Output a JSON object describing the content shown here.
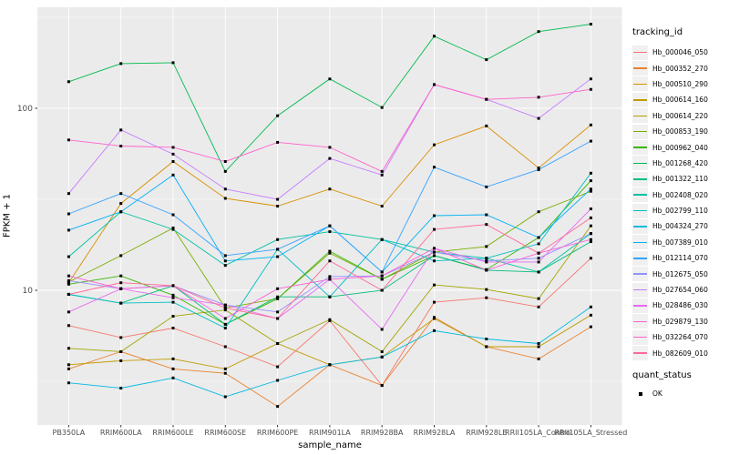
{
  "chart_data": {
    "type": "line",
    "title": "",
    "xlabel": "sample_name",
    "ylabel": "FPKM + 1",
    "y_scale": "log10",
    "ylim": [
      1.8,
      360
    ],
    "grid": true,
    "legend_position": "right",
    "point_marker": "black-square",
    "y_ticks": [
      {
        "label": "100",
        "value": 100
      },
      {
        "label": "10",
        "value": 10
      }
    ],
    "y_major_gridlines": [
      10,
      100
    ],
    "y_minor_gridlines": [
      3.162,
      31.62,
      316.2
    ],
    "categories": [
      "PB350LA",
      "RRIM600LA",
      "RRIM600LE",
      "RRIM600SE",
      "RRIM600PE",
      "RRIM901LA",
      "RRIM928BA",
      "RRIM928LA",
      "RRIM928LE",
      "RRII105LA_Control",
      "RRII105LA_Stressed"
    ],
    "series": [
      {
        "name": "Hb_000046_050",
        "color": "#F8766D",
        "values": [
          6.4,
          5.5,
          6.2,
          4.9,
          3.8,
          6.8,
          3.0,
          8.6,
          9.1,
          8.1,
          15
        ]
      },
      {
        "name": "Hb_000352_270",
        "color": "#EA8331",
        "values": [
          3.7,
          4.6,
          3.7,
          3.5,
          2.3,
          3.9,
          3.0,
          7.1,
          4.9,
          4.2,
          6.3
        ]
      },
      {
        "name": "Hb_000510_290",
        "color": "#D89000",
        "values": [
          11,
          30,
          51,
          32,
          29,
          36,
          29,
          63,
          80,
          47,
          81
        ]
      },
      {
        "name": "Hb_000614_160",
        "color": "#C09B00",
        "values": [
          3.9,
          4.1,
          4.2,
          3.7,
          5.1,
          3.9,
          4.3,
          7.0,
          4.9,
          4.9,
          7.3
        ]
      },
      {
        "name": "Hb_000614_220",
        "color": "#A3A500",
        "values": [
          4.8,
          4.6,
          7.2,
          7.8,
          5.1,
          6.9,
          4.6,
          10.7,
          10.1,
          9.0,
          22.6
        ]
      },
      {
        "name": "Hb_000853_190",
        "color": "#7CAE00",
        "values": [
          11.1,
          15.5,
          22,
          8.0,
          9.0,
          16,
          11.5,
          16.2,
          17.4,
          27,
          35
        ]
      },
      {
        "name": "Hb_000962_040",
        "color": "#39B600",
        "values": [
          10.8,
          12,
          9.4,
          6.5,
          9.0,
          16.4,
          11.5,
          15.5,
          13,
          19.5,
          40
        ]
      },
      {
        "name": "Hb_001268_420",
        "color": "#00BB4E",
        "values": [
          140,
          176,
          178,
          45,
          91,
          145,
          101,
          249,
          185,
          264,
          290
        ]
      },
      {
        "name": "Hb_001322_110",
        "color": "#00BF7D",
        "values": [
          9.5,
          8.5,
          10.6,
          6.5,
          9.2,
          9.2,
          10,
          15.5,
          12.9,
          12.6,
          18.5
        ]
      },
      {
        "name": "Hb_002408_020",
        "color": "#00C1A3",
        "values": [
          15.3,
          27,
          21.6,
          13.7,
          19,
          21,
          19,
          16.2,
          15,
          12.6,
          20.5
        ]
      },
      {
        "name": "Hb_002799_110",
        "color": "#00BFC4",
        "values": [
          9.5,
          8.5,
          8.6,
          6.2,
          16.8,
          9.2,
          19,
          14.5,
          15,
          18,
          44
        ]
      },
      {
        "name": "Hb_004324_270",
        "color": "#00BAE0",
        "values": [
          3.1,
          2.9,
          3.3,
          2.6,
          3.2,
          3.9,
          4.3,
          6.0,
          5.4,
          5.1,
          8.1
        ]
      },
      {
        "name": "Hb_007389_010",
        "color": "#00B0F6",
        "values": [
          21.4,
          27,
          43,
          14.5,
          15.3,
          22.6,
          12.6,
          25.7,
          26,
          19.5,
          36
        ]
      },
      {
        "name": "Hb_012114_070",
        "color": "#35A2FF",
        "values": [
          26.3,
          34,
          26,
          15.5,
          16.8,
          22.6,
          12.6,
          47.5,
          37,
          46,
          66
        ]
      },
      {
        "name": "Hb_012675_050",
        "color": "#9590FF",
        "values": [
          11.3,
          10.2,
          10.6,
          8.3,
          7.6,
          11.9,
          12,
          16.2,
          14.5,
          15,
          20.5
        ]
      },
      {
        "name": "Hb_027654_060",
        "color": "#C77CFF",
        "values": [
          34,
          76,
          56,
          36,
          31.6,
          53,
          43,
          135,
          112,
          88,
          145
        ]
      },
      {
        "name": "Hb_028486_030",
        "color": "#E76BF3",
        "values": [
          7.6,
          10.2,
          9.1,
          8.3,
          7.0,
          11.5,
          6.1,
          17,
          14.3,
          14.3,
          28
        ]
      },
      {
        "name": "Hb_029879_130",
        "color": "#FA62DB",
        "values": [
          12,
          10.2,
          10.6,
          7.0,
          10.2,
          11.5,
          12,
          17,
          12.9,
          16,
          19
        ]
      },
      {
        "name": "Hb_032264_070",
        "color": "#FF61CC",
        "values": [
          67,
          62,
          61,
          51,
          65,
          61,
          45,
          135,
          112,
          115,
          127
        ]
      },
      {
        "name": "Hb_082609_010",
        "color": "#FF6A98",
        "values": [
          9.5,
          11,
          10.6,
          8.0,
          7.0,
          14.5,
          10,
          21.6,
          23,
          16,
          25
        ]
      }
    ],
    "legend": {
      "title": "tracking_id",
      "secondary_title": "quant_status",
      "secondary_items": [
        {
          "label": "OK",
          "marker": "black-square"
        }
      ]
    }
  },
  "theme": {
    "panel_bg": "#EBEBEB",
    "grid_color": "#FFFFFF",
    "tick_color": "#333333",
    "tick_label_color": "#4D4D4D",
    "axis_title_color": "#000000",
    "point_color": "#000000",
    "legend_key_bg": "#F0F0F0"
  }
}
